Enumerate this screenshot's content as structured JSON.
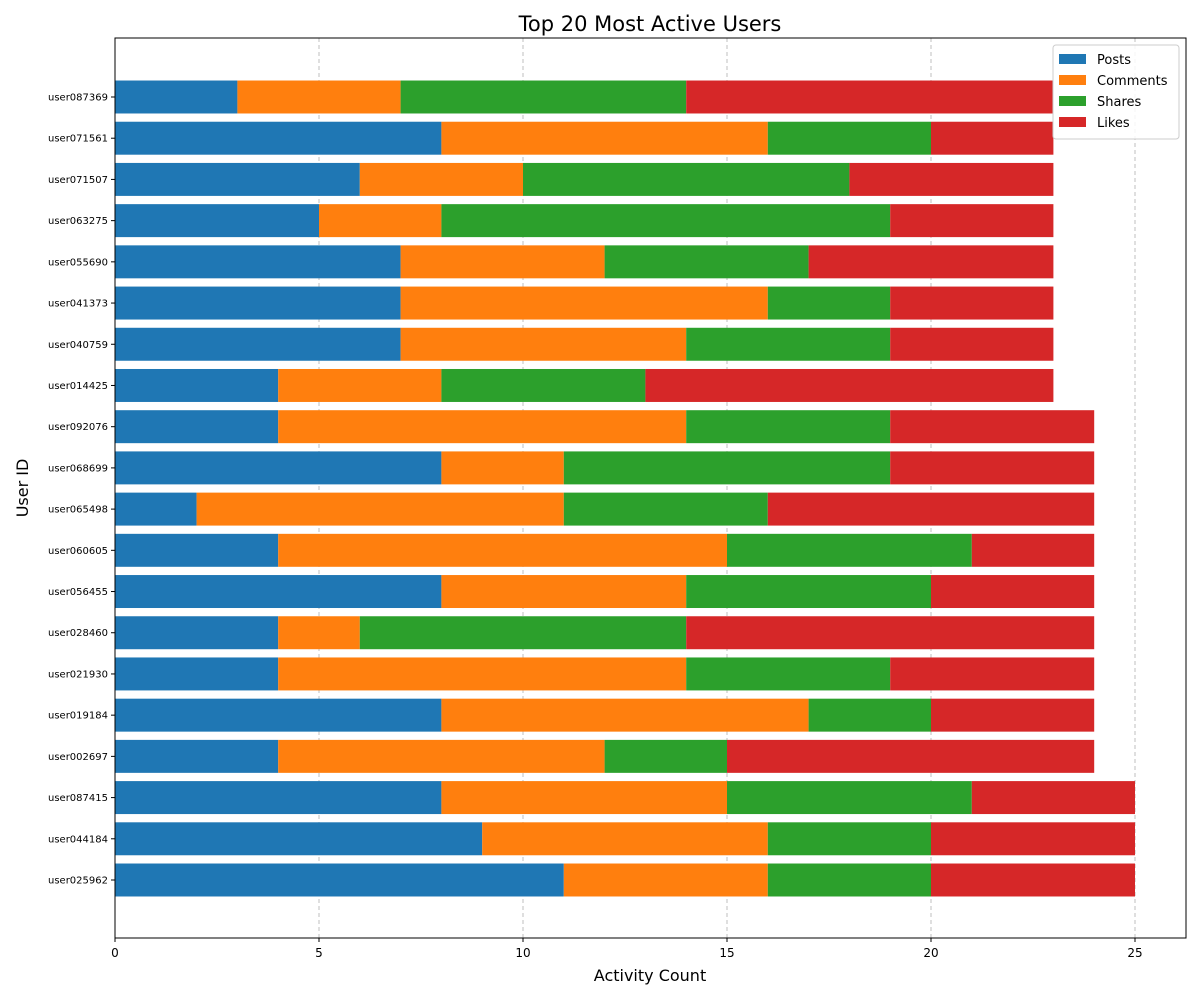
{
  "chart_data": {
    "type": "bar",
    "orientation": "horizontal",
    "stacked": true,
    "title": "Top 20 Most Active Users",
    "xlabel": "Activity Count",
    "ylabel": "User ID",
    "xlim": [
      0,
      26.25
    ],
    "xticks": [
      0,
      5,
      10,
      15,
      20,
      25
    ],
    "grid": "x-axis dashed",
    "legend_position": "top-right",
    "categories": [
      "user087369",
      "user071561",
      "user071507",
      "user063275",
      "user055690",
      "user041373",
      "user040759",
      "user014425",
      "user092076",
      "user068699",
      "user065498",
      "user060605",
      "user056455",
      "user028460",
      "user021930",
      "user019184",
      "user002697",
      "user087415",
      "user044184",
      "user025962"
    ],
    "series": [
      {
        "name": "Posts",
        "color": "#1f77b4",
        "values": [
          3,
          8,
          6,
          5,
          7,
          7,
          7,
          4,
          4,
          8,
          2,
          4,
          8,
          4,
          4,
          8,
          4,
          8,
          9,
          11
        ]
      },
      {
        "name": "Comments",
        "color": "#ff7f0e",
        "values": [
          4,
          8,
          4,
          3,
          5,
          9,
          7,
          4,
          10,
          3,
          9,
          11,
          6,
          2,
          10,
          9,
          8,
          7,
          7,
          5
        ]
      },
      {
        "name": "Shares",
        "color": "#2ca02c",
        "values": [
          7,
          4,
          8,
          11,
          5,
          3,
          5,
          5,
          5,
          8,
          5,
          6,
          6,
          8,
          5,
          3,
          3,
          6,
          4,
          4
        ]
      },
      {
        "name": "Likes",
        "color": "#d62728",
        "values": [
          9,
          3,
          5,
          4,
          6,
          4,
          4,
          10,
          5,
          5,
          8,
          3,
          4,
          10,
          5,
          4,
          9,
          4,
          5,
          5
        ]
      }
    ]
  }
}
